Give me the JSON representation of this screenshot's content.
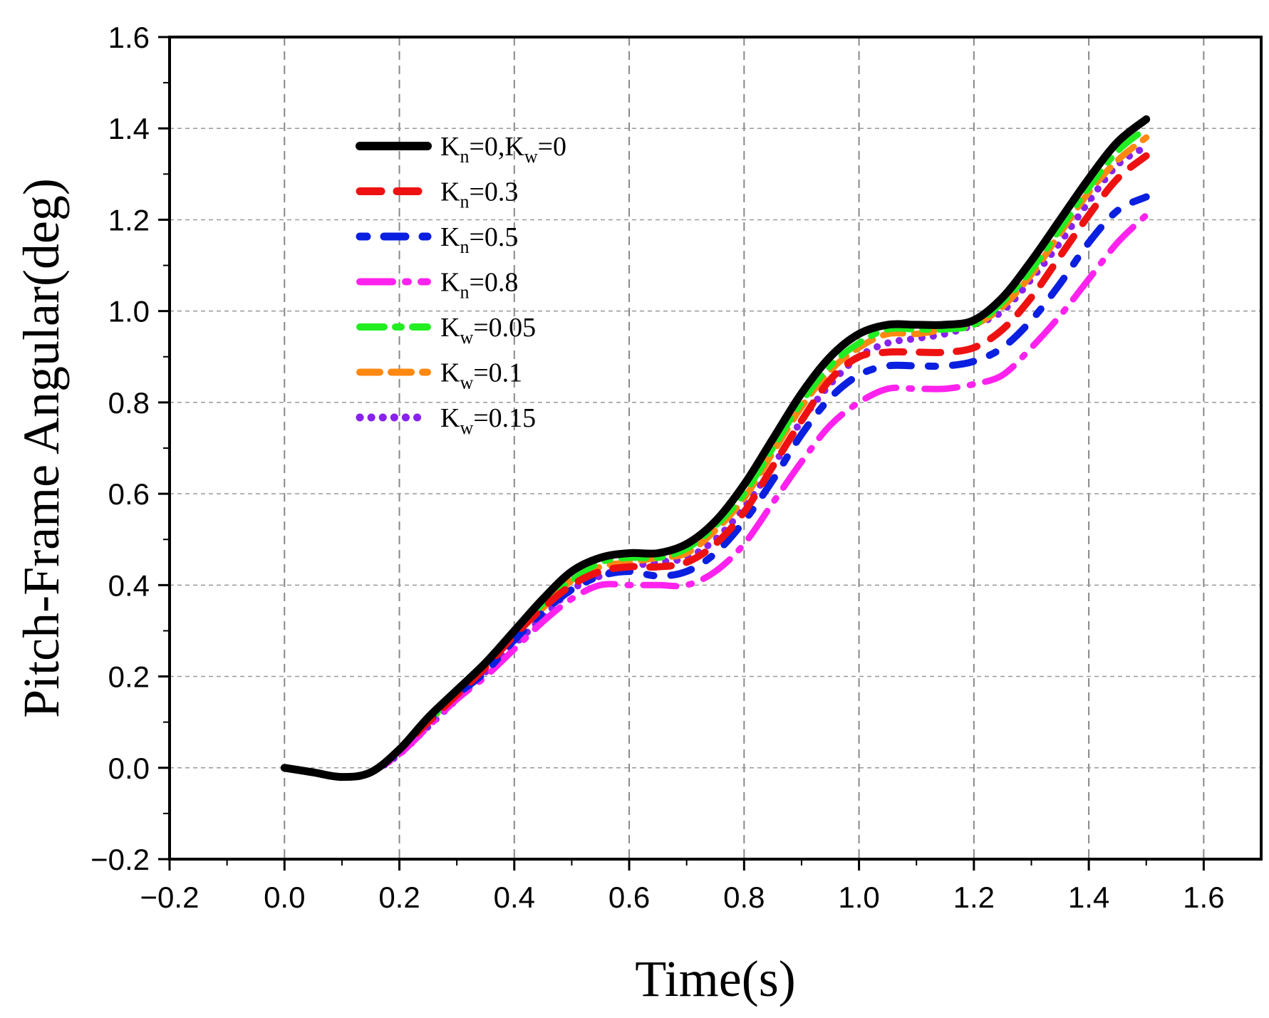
{
  "chart_data": {
    "type": "line",
    "title": "",
    "xlabel": "Time(s)",
    "ylabel": "Pitch-Frame Angular(deg)",
    "xlim": [
      -0.2,
      1.7
    ],
    "ylim": [
      -0.2,
      1.6
    ],
    "xticks": [
      -0.2,
      0.0,
      0.2,
      0.4,
      0.6,
      0.8,
      1.0,
      1.2,
      1.4,
      1.6
    ],
    "yticks": [
      -0.2,
      0.0,
      0.2,
      0.4,
      0.6,
      0.8,
      1.0,
      1.2,
      1.4,
      1.6
    ],
    "xtick_labels": [
      "−0.2",
      "0.0",
      "0.2",
      "0.4",
      "0.6",
      "0.8",
      "1.0",
      "1.2",
      "1.4",
      "1.6"
    ],
    "ytick_labels": [
      "−0.2",
      "0.0",
      "0.2",
      "0.4",
      "0.6",
      "0.8",
      "1.0",
      "1.2",
      "1.4",
      "1.6"
    ],
    "grid": "dashed",
    "legend_position": "top-left",
    "x": [
      0.0,
      0.05,
      0.1,
      0.15,
      0.2,
      0.25,
      0.3,
      0.35,
      0.4,
      0.45,
      0.5,
      0.55,
      0.6,
      0.65,
      0.7,
      0.75,
      0.8,
      0.85,
      0.9,
      0.95,
      1.0,
      1.05,
      1.1,
      1.15,
      1.2,
      1.25,
      1.3,
      1.35,
      1.4,
      1.45,
      1.5
    ],
    "series": [
      {
        "name": "K_n=0,K_w=0",
        "label_main": "K",
        "label_parts": [
          [
            "K",
            ""
          ],
          [
            "n",
            ""
          ],
          [
            "=0,K",
            ""
          ],
          [
            "w",
            ""
          ],
          [
            "=0",
            ""
          ]
        ],
        "color": "#000000",
        "dash": "solid",
        "values": [
          0.0,
          -0.01,
          -0.02,
          -0.01,
          0.04,
          0.11,
          0.17,
          0.23,
          0.3,
          0.37,
          0.43,
          0.46,
          0.47,
          0.47,
          0.49,
          0.54,
          0.62,
          0.72,
          0.82,
          0.9,
          0.95,
          0.97,
          0.97,
          0.97,
          0.98,
          1.03,
          1.11,
          1.2,
          1.29,
          1.37,
          1.42
        ]
      },
      {
        "name": "K_n=0.3",
        "color": "#ee1111",
        "dash": "dash",
        "values": [
          0.0,
          -0.01,
          -0.02,
          -0.01,
          0.04,
          0.1,
          0.16,
          0.22,
          0.29,
          0.35,
          0.4,
          0.43,
          0.44,
          0.44,
          0.45,
          0.49,
          0.56,
          0.66,
          0.76,
          0.85,
          0.9,
          0.91,
          0.91,
          0.91,
          0.92,
          0.96,
          1.03,
          1.12,
          1.21,
          1.29,
          1.34
        ]
      },
      {
        "name": "K_n=0.5",
        "color": "#0a1fe0",
        "dash": "dashdot",
        "values": [
          0.0,
          -0.01,
          -0.02,
          -0.01,
          0.04,
          0.1,
          0.16,
          0.21,
          0.28,
          0.34,
          0.39,
          0.42,
          0.43,
          0.42,
          0.43,
          0.47,
          0.54,
          0.63,
          0.73,
          0.81,
          0.86,
          0.88,
          0.88,
          0.88,
          0.89,
          0.92,
          0.98,
          1.06,
          1.15,
          1.22,
          1.25
        ]
      },
      {
        "name": "K_n=0.8",
        "color": "#ff22ee",
        "dash": "longdash",
        "values": [
          0.0,
          -0.01,
          -0.02,
          -0.01,
          0.03,
          0.09,
          0.15,
          0.2,
          0.26,
          0.32,
          0.37,
          0.4,
          0.4,
          0.4,
          0.4,
          0.43,
          0.49,
          0.58,
          0.67,
          0.75,
          0.8,
          0.83,
          0.83,
          0.83,
          0.84,
          0.86,
          0.92,
          0.99,
          1.07,
          1.15,
          1.21
        ]
      },
      {
        "name": "K_w=0.05",
        "color": "#22ee22",
        "dash": "dashdot2",
        "values": [
          0.0,
          -0.01,
          -0.02,
          -0.01,
          0.04,
          0.1,
          0.17,
          0.23,
          0.29,
          0.36,
          0.41,
          0.45,
          0.46,
          0.46,
          0.48,
          0.53,
          0.6,
          0.7,
          0.8,
          0.88,
          0.93,
          0.96,
          0.96,
          0.96,
          0.97,
          1.02,
          1.09,
          1.18,
          1.27,
          1.35,
          1.4
        ]
      },
      {
        "name": "K_w=0.1",
        "color": "#ff8811",
        "dash": "dash2",
        "values": [
          0.0,
          -0.01,
          -0.02,
          -0.01,
          0.04,
          0.1,
          0.16,
          0.22,
          0.29,
          0.35,
          0.41,
          0.44,
          0.45,
          0.46,
          0.47,
          0.52,
          0.59,
          0.69,
          0.79,
          0.87,
          0.92,
          0.95,
          0.95,
          0.96,
          0.97,
          1.01,
          1.08,
          1.17,
          1.26,
          1.33,
          1.38
        ]
      },
      {
        "name": "K_w=0.15",
        "color": "#8822ee",
        "dash": "dot",
        "values": [
          0.0,
          -0.01,
          -0.02,
          -0.01,
          0.03,
          0.09,
          0.15,
          0.21,
          0.27,
          0.33,
          0.39,
          0.42,
          0.44,
          0.45,
          0.46,
          0.5,
          0.57,
          0.66,
          0.76,
          0.84,
          0.9,
          0.93,
          0.94,
          0.95,
          0.97,
          1.0,
          1.07,
          1.15,
          1.24,
          1.32,
          1.36
        ]
      }
    ],
    "legend": [
      {
        "parts": [
          {
            "t": "K"
          },
          {
            "t": "n",
            "sub": true
          },
          {
            "t": "=0,K"
          },
          {
            "t": "w",
            "sub": true
          },
          {
            "t": "=0"
          }
        ]
      },
      {
        "parts": [
          {
            "t": "K"
          },
          {
            "t": "n",
            "sub": true
          },
          {
            "t": "=0.3"
          }
        ]
      },
      {
        "parts": [
          {
            "t": "K"
          },
          {
            "t": "n",
            "sub": true
          },
          {
            "t": "=0.5"
          }
        ]
      },
      {
        "parts": [
          {
            "t": "K"
          },
          {
            "t": "n",
            "sub": true
          },
          {
            "t": "=0.8"
          }
        ]
      },
      {
        "parts": [
          {
            "t": "K"
          },
          {
            "t": "w",
            "sub": true
          },
          {
            "t": "=0.05"
          }
        ]
      },
      {
        "parts": [
          {
            "t": "K"
          },
          {
            "t": "w",
            "sub": true
          },
          {
            "t": "=0.1"
          }
        ]
      },
      {
        "parts": [
          {
            "t": "K"
          },
          {
            "t": "w",
            "sub": true
          },
          {
            "t": "=0.15"
          }
        ]
      }
    ]
  }
}
